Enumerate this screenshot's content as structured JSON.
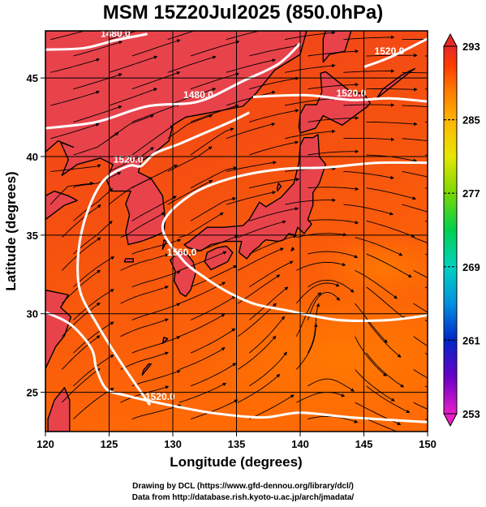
{
  "title": "MSM 15Z20Jul2025 (850.0hPa)",
  "axes": {
    "xlabel": "Longitude (degrees)",
    "ylabel": "Latitude  (degrees)",
    "xlim": [
      120,
      150
    ],
    "ylim": [
      22.5,
      48
    ],
    "xticks": [
      120,
      125,
      130,
      135,
      140,
      145,
      150
    ],
    "yticks": [
      25,
      30,
      35,
      40,
      45
    ],
    "grid": true
  },
  "colorbar": {
    "min": 253,
    "max": 293,
    "labels": [
      253,
      261,
      269,
      277,
      285,
      293
    ],
    "colors": [
      "#e81ec8",
      "#6a00c8",
      "#0026c8",
      "#0090e0",
      "#00d2c0",
      "#00d050",
      "#7ad800",
      "#e6e600",
      "#ffb400",
      "#ff7a00",
      "#ff3a00",
      "#e62828"
    ],
    "dashed_levels": [
      261,
      269,
      277,
      285
    ]
  },
  "field_colors": {
    "land": "#e9444a",
    "sea_warm": "#f5500e",
    "sea_hot": "#ff6a00",
    "coast": "#000000",
    "contour": "#ffffff",
    "streamline": "#000000"
  },
  "contours": [
    {
      "label": "1480.0",
      "points": [
        [
          120,
          46.8
        ],
        [
          123,
          46.9
        ],
        [
          125.5,
          47.4
        ],
        [
          128,
          47.8
        ]
      ]
    },
    {
      "label": "1480.0",
      "points": [
        [
          120,
          41.8
        ],
        [
          124,
          42.2
        ],
        [
          128,
          43.2
        ],
        [
          132,
          43.5
        ],
        [
          135.5,
          44.8
        ],
        [
          138.3,
          45.9
        ],
        [
          140,
          47.2
        ]
      ]
    },
    {
      "label": "1520.0",
      "points": [
        [
          136.3,
          43.8
        ],
        [
          140.5,
          43.9
        ],
        [
          144,
          43.6
        ],
        [
          147,
          43.7
        ],
        [
          150,
          43.5
        ]
      ]
    },
    {
      "label": "1520.0",
      "points": [
        [
          150,
          47.5
        ],
        [
          147,
          46.3
        ],
        [
          145,
          45.7
        ]
      ]
    },
    {
      "label": "1520.0",
      "points": [
        [
          120,
          30.1
        ],
        [
          122,
          29.3
        ],
        [
          123.6,
          27.8
        ],
        [
          124,
          26.5
        ],
        [
          124.8,
          25.2
        ],
        [
          126.3,
          24.8
        ],
        [
          129,
          24.3
        ],
        [
          133,
          23.7
        ],
        [
          137,
          23.4
        ],
        [
          140,
          23.7
        ],
        [
          144,
          23.4
        ],
        [
          150,
          23.1
        ]
      ]
    },
    {
      "label": "1520.0",
      "points": [
        [
          128.2,
          24.2
        ],
        [
          126,
          26.8
        ],
        [
          124,
          29.4
        ],
        [
          122.7,
          31.5
        ],
        [
          122.6,
          34
        ],
        [
          123.3,
          36.5
        ],
        [
          124.6,
          38.5
        ],
        [
          126.5,
          39.4
        ],
        [
          127.5,
          39.4
        ],
        [
          128.6,
          40.2
        ],
        [
          130.5,
          40.8
        ],
        [
          132.5,
          41.5
        ],
        [
          134.5,
          42.2
        ],
        [
          136,
          42.8
        ]
      ]
    },
    {
      "label": "1560.0",
      "points": [
        [
          150,
          39.6
        ],
        [
          146,
          39.6
        ],
        [
          142,
          39.3
        ],
        [
          138.5,
          39.2
        ],
        [
          134.5,
          38.6
        ],
        [
          131.3,
          37.5
        ],
        [
          129.2,
          35.6
        ],
        [
          130.7,
          33.5
        ],
        [
          132.5,
          32.3
        ],
        [
          134.5,
          31.3
        ],
        [
          136.5,
          30.6
        ],
        [
          139,
          30.2
        ],
        [
          143,
          29.6
        ],
        [
          147,
          29.6
        ],
        [
          150,
          29.9
        ]
      ]
    }
  ],
  "credits": {
    "line1": "Drawing by DCL (https://www.gfd-dennou.org/library/dcl/)",
    "line2": "Data from http://database.rish.kyoto-u.ac.jp/arch/jmadata/"
  }
}
